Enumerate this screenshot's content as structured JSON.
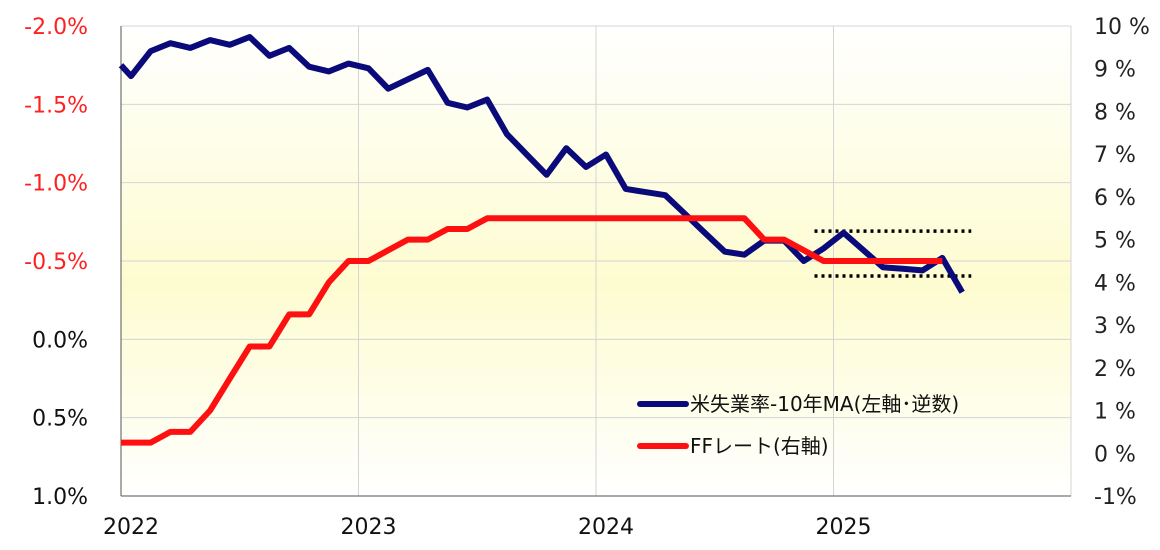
{
  "chart_data": {
    "type": "line",
    "title": "",
    "left_axis": {
      "min": -2.0,
      "max": 1.0,
      "inverted": true,
      "ticks": [
        {
          "value": -2.0,
          "label": "-2.0%",
          "color": "#ff2020"
        },
        {
          "value": -1.5,
          "label": "-1.5%",
          "color": "#ff2020"
        },
        {
          "value": -1.0,
          "label": "-1.0%",
          "color": "#ff2020"
        },
        {
          "value": -0.5,
          "label": "-0.5%",
          "color": "#ff2020"
        },
        {
          "value": 0.0,
          "label": "0.0%",
          "color": "#111111"
        },
        {
          "value": 0.5,
          "label": "0.5%",
          "color": "#111111"
        },
        {
          "value": 1.0,
          "label": "1.0%",
          "color": "#111111"
        }
      ]
    },
    "right_axis": {
      "min": -1,
      "max": 10,
      "ticks": [
        {
          "value": 10,
          "label": "10 %",
          "color": "#222222"
        },
        {
          "value": 9,
          "label": "9 %",
          "color": "#222222"
        },
        {
          "value": 8,
          "label": "8 %",
          "color": "#222222"
        },
        {
          "value": 7,
          "label": "7 %",
          "color": "#222222"
        },
        {
          "value": 6,
          "label": "6 %",
          "color": "#222222"
        },
        {
          "value": 5,
          "label": "5 %",
          "color": "#222222"
        },
        {
          "value": 4,
          "label": "4 %",
          "color": "#222222"
        },
        {
          "value": 3,
          "label": "3 %",
          "color": "#222222"
        },
        {
          "value": 2,
          "label": "2 %",
          "color": "#222222"
        },
        {
          "value": 1,
          "label": "1 %",
          "color": "#222222"
        },
        {
          "value": 0,
          "label": "0 %",
          "color": "#222222"
        },
        {
          "value": -1,
          "label": "-1%",
          "color": "#ff2020"
        }
      ]
    },
    "x_axis": {
      "min": 2022.0,
      "max": 2026.0,
      "ticks": [
        {
          "value": 2022,
          "label": "2022"
        },
        {
          "value": 2023,
          "label": "2023"
        },
        {
          "value": 2024,
          "label": "2024"
        },
        {
          "value": 2025,
          "label": "2025"
        }
      ]
    },
    "grid": true,
    "background_gradient": [
      "#ffffff",
      "#fdfcd0",
      "#ffffff"
    ],
    "series": [
      {
        "name": "米失業率-10年MA(左軸･逆数)",
        "axis": "left",
        "color": "#0a0a7a",
        "x": [
          2022.0,
          2022.042,
          2022.125,
          2022.208,
          2022.292,
          2022.375,
          2022.458,
          2022.542,
          2022.625,
          2022.708,
          2022.792,
          2022.875,
          2022.958,
          2023.042,
          2023.125,
          2023.208,
          2023.292,
          2023.375,
          2023.458,
          2023.542,
          2023.625,
          2023.708,
          2023.792,
          2023.875,
          2023.958,
          2024.042,
          2024.125,
          2024.208,
          2024.292,
          2024.375,
          2024.458,
          2024.542,
          2024.625,
          2024.708,
          2024.792,
          2024.875,
          2024.958,
          2025.042,
          2025.125,
          2025.208,
          2025.292,
          2025.375,
          2025.458,
          2025.542
        ],
        "values": [
          -1.75,
          -1.68,
          -1.84,
          -1.89,
          -1.86,
          -1.91,
          -1.88,
          -1.93,
          -1.81,
          -1.86,
          -1.74,
          -1.71,
          -1.76,
          -1.73,
          -1.6,
          -1.66,
          -1.72,
          -1.51,
          -1.48,
          -1.53,
          -1.31,
          -1.18,
          -1.05,
          -1.22,
          -1.1,
          -1.18,
          -0.96,
          -0.94,
          -0.92,
          -0.8,
          -0.68,
          -0.56,
          -0.54,
          -0.63,
          -0.63,
          -0.5,
          -0.58,
          -0.68,
          -0.57,
          -0.46,
          -0.45,
          -0.44,
          -0.52,
          -0.3
        ]
      },
      {
        "name": "FFレート(右軸)",
        "axis": "right",
        "color": "#ff1010",
        "x": [
          2022.0,
          2022.125,
          2022.208,
          2022.292,
          2022.375,
          2022.458,
          2022.542,
          2022.625,
          2022.708,
          2022.792,
          2022.875,
          2022.958,
          2023.042,
          2023.125,
          2023.208,
          2023.292,
          2023.375,
          2023.458,
          2023.542,
          2023.625,
          2023.708,
          2023.792,
          2023.875,
          2023.958,
          2024.042,
          2024.125,
          2024.208,
          2024.292,
          2024.375,
          2024.458,
          2024.542,
          2024.625,
          2024.708,
          2024.792,
          2024.875,
          2024.958,
          2025.042,
          2025.125,
          2025.208,
          2025.292,
          2025.375,
          2025.458
        ],
        "values": [
          0.25,
          0.25,
          0.5,
          0.5,
          1.0,
          1.75,
          2.5,
          2.5,
          3.25,
          3.25,
          4.0,
          4.5,
          4.5,
          4.75,
          5.0,
          5.0,
          5.25,
          5.25,
          5.5,
          5.5,
          5.5,
          5.5,
          5.5,
          5.5,
          5.5,
          5.5,
          5.5,
          5.5,
          5.5,
          5.5,
          5.5,
          5.5,
          5.0,
          5.0,
          4.75,
          4.5,
          4.5,
          4.5,
          4.5,
          4.5,
          4.5,
          4.5
        ]
      }
    ],
    "annotations": [
      {
        "type": "dotted-line",
        "axis": "right",
        "x_start": 2024.92,
        "x_end": 2025.58,
        "y": 5.2,
        "color": "#000000"
      },
      {
        "type": "dotted-line",
        "axis": "right",
        "x_start": 2024.92,
        "x_end": 2025.58,
        "y": 4.15,
        "color": "#000000"
      }
    ],
    "legend": {
      "position": "lower-right",
      "entries": [
        {
          "label": "米失業率-10年MA(左軸･逆数)",
          "color": "#0a0a7a"
        },
        {
          "label": "FFレート(右軸)",
          "color": "#ff1010"
        }
      ]
    }
  }
}
